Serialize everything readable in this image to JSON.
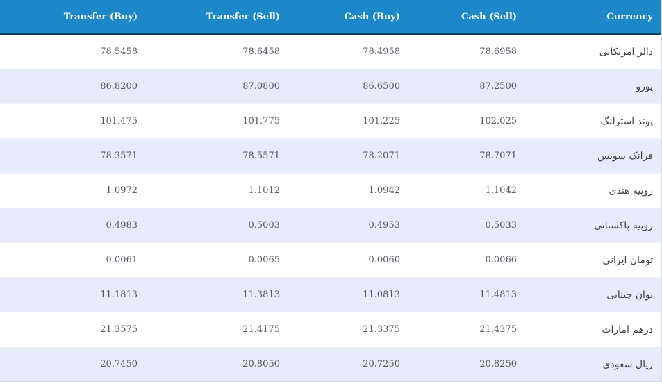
{
  "table": {
    "headers": {
      "transfer_buy": "Transfer (Buy)",
      "transfer_sell": "Transfer (Sell)",
      "cash_buy": "Cash (Buy)",
      "cash_sell": "Cash (Sell)",
      "currency": "Currency"
    },
    "rows": [
      {
        "transfer_buy": "78.5458",
        "transfer_sell": "78.6458",
        "cash_buy": "78.4958",
        "cash_sell": "78.6958",
        "currency": "دالر امریکایی"
      },
      {
        "transfer_buy": "86.8200",
        "transfer_sell": "87.0800",
        "cash_buy": "86.6500",
        "cash_sell": "87.2500",
        "currency": "یورو"
      },
      {
        "transfer_buy": "101.475",
        "transfer_sell": "101.775",
        "cash_buy": "101.225",
        "cash_sell": "102.025",
        "currency": "پوند استرلنگ"
      },
      {
        "transfer_buy": "78.3571",
        "transfer_sell": "78.5571",
        "cash_buy": "78.2071",
        "cash_sell": "78.7071",
        "currency": "فرانک سویس"
      },
      {
        "transfer_buy": "1.0972",
        "transfer_sell": "1.1012",
        "cash_buy": "1.0942",
        "cash_sell": "1.1042",
        "currency": "روپیه هندی"
      },
      {
        "transfer_buy": "0.4983",
        "transfer_sell": "0.5003",
        "cash_buy": "0.4953",
        "cash_sell": "0.5033",
        "currency": "روپیه پاکستانی"
      },
      {
        "transfer_buy": "0.0061",
        "transfer_sell": "0.0065",
        "cash_buy": "0.0060",
        "cash_sell": "0.0066",
        "currency": "تومان ایرانی"
      },
      {
        "transfer_buy": "11.1813",
        "transfer_sell": "11.3813",
        "cash_buy": "11.0813",
        "cash_sell": "11.4813",
        "currency": "یوان چینایی"
      },
      {
        "transfer_buy": "21.3575",
        "transfer_sell": "21.4175",
        "cash_buy": "21.3375",
        "cash_sell": "21.4375",
        "currency": "درهم امارات"
      },
      {
        "transfer_buy": "20.7450",
        "transfer_sell": "20.8050",
        "cash_buy": "20.7250",
        "cash_sell": "20.8250",
        "currency": "ریال سعودی"
      }
    ]
  },
  "colors": {
    "header_background": "#1c87c9",
    "header_text": "#ffffff",
    "row_alt_background": "#e8ebf9",
    "row_background": "#ffffff",
    "cell_text": "#555a63"
  }
}
